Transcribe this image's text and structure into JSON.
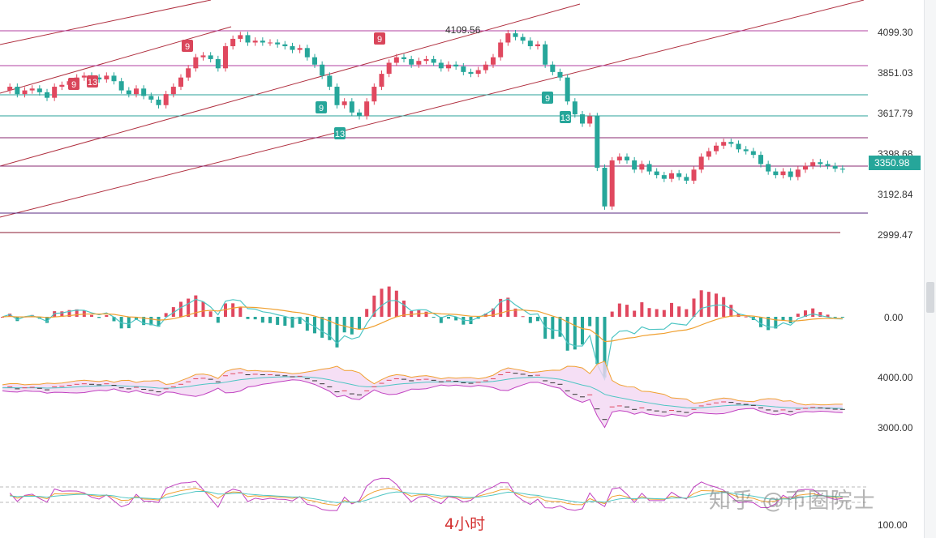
{
  "caption": "4小时",
  "watermark": "知乎 @币圈院士",
  "chart_data": {
    "type": "candlestick",
    "price_axis_ticks": [
      "4099.30",
      "3851.03",
      "3617.79",
      "3398.68",
      "3192.84",
      "2999.47"
    ],
    "current_price": "3350.98",
    "high_label": "4109.56",
    "td_markers": [
      {
        "label": "9",
        "color": "red"
      },
      {
        "label": "13",
        "color": "red"
      },
      {
        "label": "9",
        "color": "red"
      },
      {
        "label": "9",
        "color": "red"
      },
      {
        "label": "9",
        "color": "green"
      },
      {
        "label": "13",
        "color": "green"
      },
      {
        "label": "9",
        "color": "green"
      },
      {
        "label": "13",
        "color": "green"
      }
    ],
    "macd_axis_ticks": [
      "0.00"
    ],
    "boll_axis_ticks": [
      "4000.00",
      "3000.00"
    ],
    "osc_axis_ticks": [
      "100.00"
    ],
    "price_path": [
      3780,
      3800,
      3760,
      3780,
      3790,
      3770,
      3740,
      3800,
      3810,
      3830,
      3850,
      3860,
      3850,
      3840,
      3860,
      3830,
      3780,
      3760,
      3790,
      3750,
      3730,
      3700,
      3760,
      3800,
      3850,
      3900,
      3960,
      3970,
      3950,
      3900,
      4020,
      4060,
      4080,
      4040,
      4050,
      4040,
      4040,
      4030,
      4020,
      4000,
      4010,
      3960,
      3920,
      3860,
      3800,
      3700,
      3720,
      3660,
      3640,
      3720,
      3800,
      3870,
      3930,
      3960,
      3950,
      3920,
      3940,
      3950,
      3930,
      3900,
      3920,
      3910,
      3880,
      3870,
      3890,
      3920,
      3960,
      4040,
      4090,
      4070,
      4050,
      4020,
      4030,
      3920,
      3880,
      3850,
      3720,
      3650,
      3600,
      3640,
      3360,
      3150,
      3400,
      3420,
      3400,
      3350,
      3380,
      3340,
      3320,
      3300,
      3330,
      3310,
      3290,
      3350,
      3420,
      3450,
      3480,
      3500,
      3490,
      3460,
      3450,
      3430,
      3380,
      3340,
      3320,
      3340,
      3310,
      3350,
      3370,
      3390,
      3380,
      3370,
      3355,
      3350
    ],
    "colors": {
      "up": "#e0485f",
      "down": "#26a69a",
      "macd_dif": "#4dc5c3",
      "macd_dea": "#f0a030",
      "boll_mid": "#4dc5c3",
      "boll_band": "#f0a030",
      "boll_fill": "#f3d7f3",
      "channel": "#b03040",
      "hline_magenta": "#b040a0",
      "hline_teal": "#2aa198"
    }
  }
}
